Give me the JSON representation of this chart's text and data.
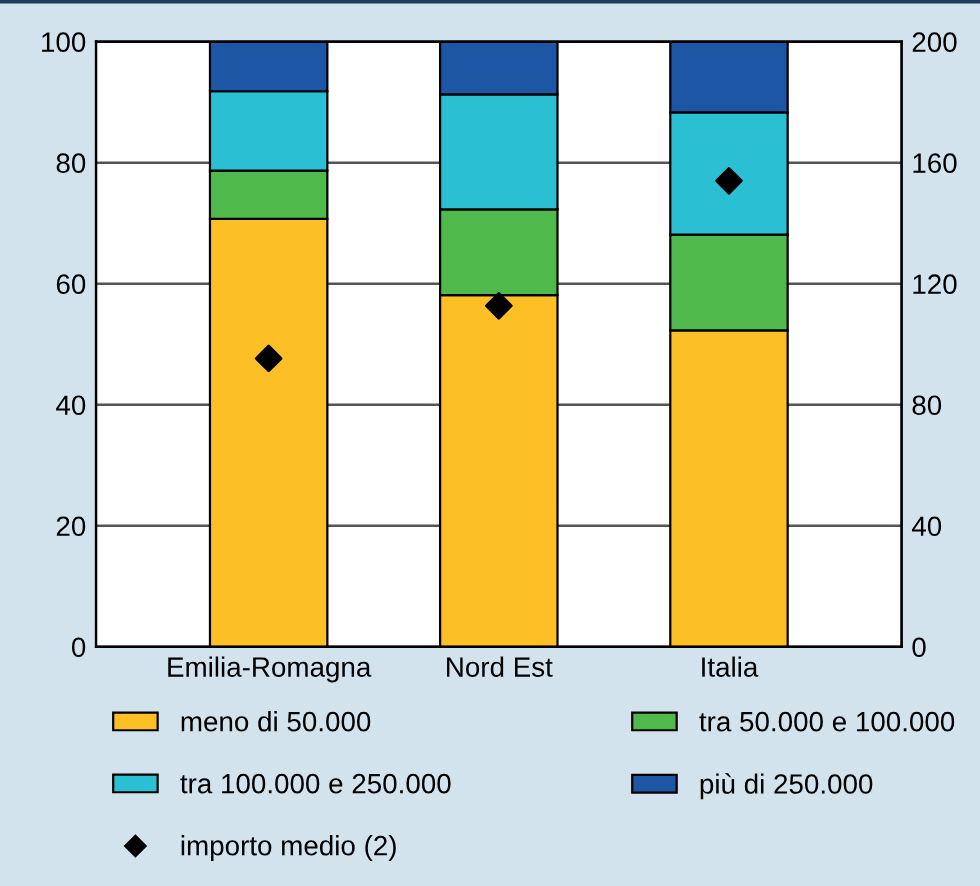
{
  "chart_data": {
    "type": "bar",
    "stacked": true,
    "categories": [
      "Emilia-Romagna",
      "Nord Est",
      "Italia"
    ],
    "series": [
      {
        "name": "meno di 50.000",
        "color": "#fdbf26",
        "values": [
          70.7,
          58.1,
          52.3
        ]
      },
      {
        "name": "tra 50.000 e 100.000",
        "color": "#50b94c",
        "values": [
          8.0,
          14.2,
          15.8
        ]
      },
      {
        "name": "tra 100.000 e 250.000",
        "color": "#2bbfd3",
        "values": [
          13.1,
          19.0,
          20.2
        ]
      },
      {
        "name": "più di 250.000",
        "color": "#1d56a5",
        "values": [
          8.2,
          8.7,
          11.7
        ]
      },
      {
        "name": "importo medio (2)",
        "type": "scatter",
        "axis": "y2",
        "marker": "diamond",
        "color": "#000000",
        "x": [
          "Emilia-Romagna",
          "Nord Est",
          "Italia"
        ],
        "values": [
          95.3,
          112.7,
          154
        ]
      }
    ],
    "ylim": [
      0,
      100
    ],
    "yticks": [
      0,
      20,
      40,
      60,
      80,
      100
    ],
    "y2lim": [
      0,
      200
    ],
    "y2ticks": [
      0,
      40,
      80,
      120,
      160,
      200
    ],
    "grid": "y",
    "legend": "bottom"
  }
}
